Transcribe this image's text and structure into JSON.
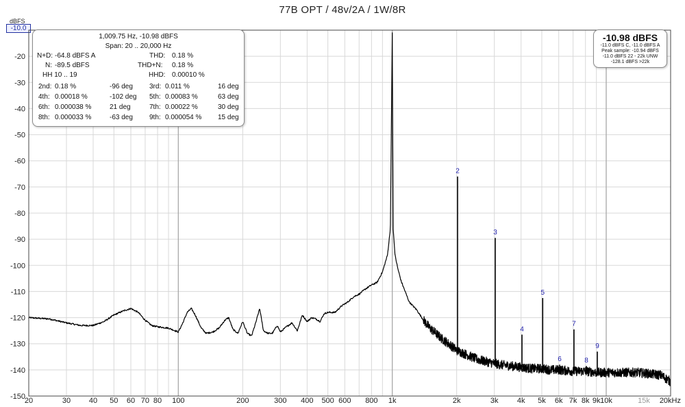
{
  "chart_data": {
    "type": "line",
    "title": "77B OPT / 48v/2A / 1W/8R",
    "ylabel": "dBFS",
    "xscale": "log",
    "xlim": [
      20,
      20000
    ],
    "ylim": [
      -150,
      -10
    ],
    "y_ticks": [
      {
        "value": -20,
        "label": "-20"
      },
      {
        "value": -30,
        "label": "-30"
      },
      {
        "value": -40,
        "label": "-40"
      },
      {
        "value": -50,
        "label": "-50"
      },
      {
        "value": -60,
        "label": "-60"
      },
      {
        "value": -70,
        "label": "-70"
      },
      {
        "value": -80,
        "label": "-80"
      },
      {
        "value": -90,
        "label": "-90"
      },
      {
        "value": -100,
        "label": "-100"
      },
      {
        "value": -110,
        "label": "-110"
      },
      {
        "value": -120,
        "label": "-120"
      },
      {
        "value": -130,
        "label": "-130"
      },
      {
        "value": -140,
        "label": "-140"
      },
      {
        "value": -150,
        "label": "-150"
      }
    ],
    "top_level_label": "-10.0",
    "x_ticks": [
      {
        "value": 20,
        "label": "20"
      },
      {
        "value": 30,
        "label": "30"
      },
      {
        "value": 40,
        "label": "40"
      },
      {
        "value": 50,
        "label": "50"
      },
      {
        "value": 60,
        "label": "60"
      },
      {
        "value": 70,
        "label": "70"
      },
      {
        "value": 80,
        "label": "80"
      },
      {
        "value": 100,
        "label": "100"
      },
      {
        "value": 200,
        "label": "200"
      },
      {
        "value": 300,
        "label": "300"
      },
      {
        "value": 400,
        "label": "400"
      },
      {
        "value": 500,
        "label": "500"
      },
      {
        "value": 600,
        "label": "600"
      },
      {
        "value": 800,
        "label": "800"
      },
      {
        "value": 1000,
        "label": "1k"
      },
      {
        "value": 2000,
        "label": "2k"
      },
      {
        "value": 3000,
        "label": "3k"
      },
      {
        "value": 4000,
        "label": "4k"
      },
      {
        "value": 5000,
        "label": "5k"
      },
      {
        "value": 6000,
        "label": "6k"
      },
      {
        "value": 7000,
        "label": "7k"
      },
      {
        "value": 8000,
        "label": "8k"
      },
      {
        "value": 9000,
        "label": "9k"
      },
      {
        "value": 10000,
        "label": "10k"
      },
      {
        "value": 15000,
        "label": "15k",
        "muted": true
      },
      {
        "value": 20000,
        "label": "20kHz"
      }
    ],
    "series": [
      {
        "x": [
          20,
          25,
          30,
          35,
          40,
          45,
          50,
          55,
          60,
          65,
          70,
          75,
          80,
          90,
          100,
          105,
          110,
          115,
          120,
          128,
          135,
          145,
          155,
          165,
          172,
          180,
          190,
          200,
          210,
          220,
          230,
          240,
          250,
          262,
          275,
          290,
          300,
          320,
          340,
          360,
          380,
          400,
          420,
          440,
          460,
          480,
          500,
          540,
          580,
          620,
          660,
          700,
          750,
          800,
          850,
          900,
          950,
          980,
          1000,
          1010,
          1030,
          1060,
          1100,
          1200,
          1300,
          1400,
          1500,
          1600,
          1700,
          1800,
          1900,
          2000,
          2200,
          2500,
          2800,
          3200,
          3600,
          4000,
          4500,
          5000,
          5500,
          6000,
          7000,
          8000,
          9000,
          10000,
          12000,
          14000,
          16000,
          18000,
          20000
        ],
        "y": [
          -120,
          -120.5,
          -122,
          -123,
          -123,
          -121.5,
          -119,
          -117.5,
          -116.5,
          -118,
          -121,
          -123,
          -123.5,
          -124,
          -125.5,
          -122,
          -118,
          -116.5,
          -119,
          -124,
          -126,
          -125.5,
          -124,
          -121,
          -120,
          -124.5,
          -126,
          -121.5,
          -126,
          -127,
          -122,
          -116.5,
          -125,
          -126,
          -126,
          -123,
          -125.5,
          -123.5,
          -122,
          -125,
          -119,
          -121.5,
          -120,
          -120.5,
          -121.5,
          -118.5,
          -118,
          -118,
          -115.5,
          -114,
          -112,
          -111,
          -109,
          -107.5,
          -106.5,
          -102.5,
          -96,
          -86,
          -11,
          -86,
          -96,
          -101,
          -106,
          -114,
          -117,
          -121,
          -124,
          -126,
          -128,
          -129.5,
          -131,
          -132.5,
          -134,
          -136,
          -137,
          -138,
          -138.5,
          -139,
          -139.5,
          -139.5,
          -140,
          -140,
          -140.5,
          -140.5,
          -141,
          -141,
          -141,
          -141,
          -141.5,
          -142,
          -144.5
        ]
      }
    ],
    "harmonics": [
      {
        "label": "2",
        "freq": 2019.5,
        "level": -66
      },
      {
        "label": "3",
        "freq": 3029.3,
        "level": -89.5
      },
      {
        "label": "4",
        "freq": 4039,
        "level": -126.5
      },
      {
        "label": "5",
        "freq": 5048.8,
        "level": -112.5
      },
      {
        "label": "6",
        "freq": 6058.5,
        "level": -138
      },
      {
        "label": "7",
        "freq": 7068.3,
        "level": -124.5
      },
      {
        "label": "8",
        "freq": 8078,
        "level": -138.5
      },
      {
        "label": "9",
        "freq": 9087.8,
        "level": -133
      }
    ]
  },
  "stats_box": {
    "line1": "1,009.75 Hz, -10.98 dBFS",
    "line2": "Span: 20 .. 20,000 Hz",
    "nd_label": "N+D:",
    "nd_value": "-64.8 dBFS A",
    "thd_label": "THD:",
    "thd_value": "0.18 %",
    "n_label": "N:",
    "n_value": "-89.5 dBFS",
    "thdn_label": "THD+N:",
    "thdn_value": "0.18 %",
    "hh_label": "HH 10 .. 19",
    "hhd_label": "HHD:",
    "hhd_value": "0.00010 %",
    "harmonic_rows": [
      {
        "l1": "2nd:",
        "v1": "0.18 %",
        "p1": "-96 deg",
        "l2": "3rd:",
        "v2": "0.011 %",
        "p2": "16 deg"
      },
      {
        "l1": "4th:",
        "v1": "0.00018 %",
        "p1": "-102 deg",
        "l2": "5th:",
        "v2": "0.00083 %",
        "p2": "63 deg"
      },
      {
        "l1": "6th:",
        "v1": "0.000038 %",
        "p1": "21 deg",
        "l2": "7th:",
        "v2": "0.00022 %",
        "p2": "30 deg"
      },
      {
        "l1": "8th:",
        "v1": "0.000033 %",
        "p1": "-63 deg",
        "l2": "9th:",
        "v2": "0.000054 %",
        "p2": "15 deg"
      }
    ]
  },
  "level_box": {
    "main": "-10.98 dBFS",
    "line1": "-11.0 dBFS C, -11.0 dBFS A",
    "line2": "Peak sample: -10.94 dBFS",
    "line3": "-11.0 dBFS 22 - 22k UNW",
    "line4": "-128.1 dBFS >22k"
  },
  "colors": {
    "trace": "#000000",
    "grid": "#d8d8d8",
    "grid_major": "#a8a8a8",
    "harmonic_label": "#1a1aa8",
    "muted_tick": "#9a9a9a"
  }
}
